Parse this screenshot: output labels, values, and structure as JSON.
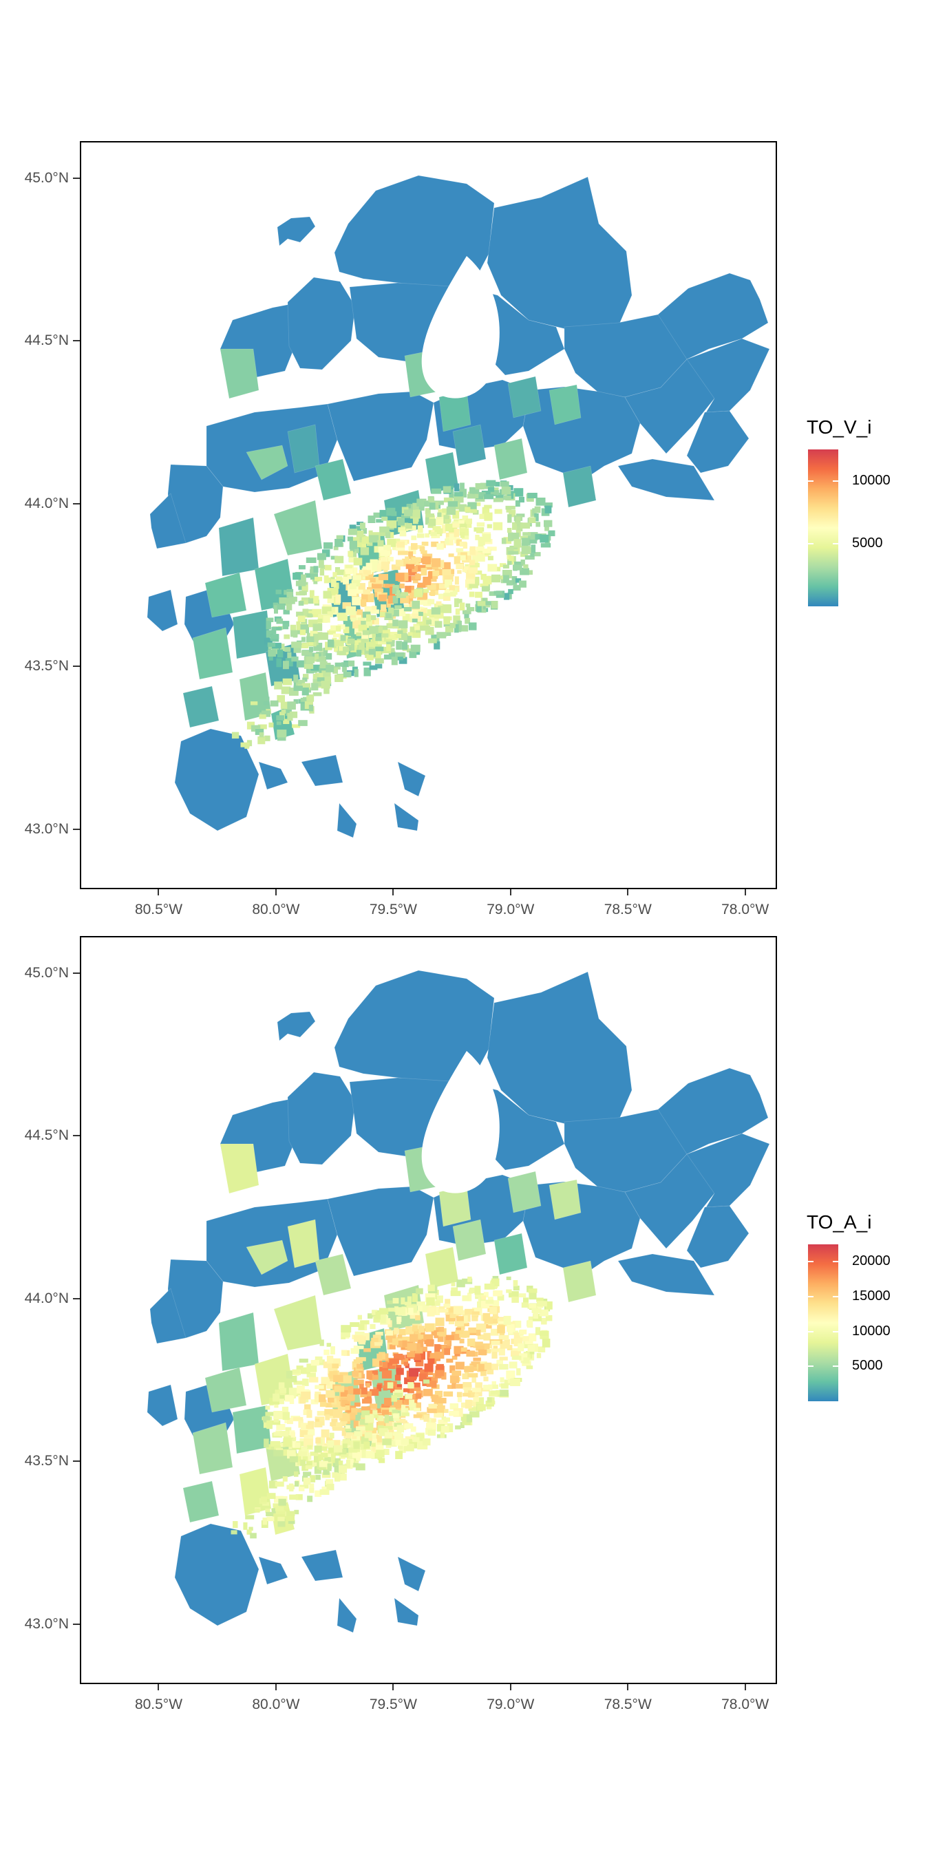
{
  "panels": [
    {
      "id": "top",
      "legend": {
        "title": "TO_V_i",
        "labels": [
          "10000",
          "5000"
        ],
        "label_values": [
          10000,
          5000
        ],
        "range": [
          0,
          12500
        ]
      }
    },
    {
      "id": "bottom",
      "legend": {
        "title": "TO_A_i",
        "labels": [
          "20000",
          "15000",
          "10000",
          "5000"
        ],
        "label_values": [
          20000,
          15000,
          10000,
          5000
        ],
        "range": [
          0,
          22500
        ]
      }
    }
  ],
  "y_axis": {
    "labels": [
      "45.0°N",
      "44.5°N",
      "44.0°N",
      "43.5°N",
      "43.0°N"
    ],
    "values": [
      45.0,
      44.5,
      44.0,
      43.5,
      43.0
    ],
    "range": [
      42.82,
      45.11
    ]
  },
  "x_axis": {
    "labels": [
      "80.5°W",
      "80.0°W",
      "79.5°W",
      "79.0°W",
      "78.5°W",
      "78.0°W"
    ],
    "values": [
      -80.5,
      -80.0,
      -79.5,
      -79.0,
      -78.5,
      -78.0
    ],
    "range": [
      -80.83,
      -77.87
    ]
  },
  "colors": {
    "scale": [
      "#3288bd",
      "#66c2a5",
      "#abdda4",
      "#e6f598",
      "#ffffbf",
      "#fee08b",
      "#fdae61",
      "#f46d43",
      "#d53e4f"
    ],
    "rural_blue": "#3a8bc0",
    "frame": "#000000",
    "axis_text": "#4d4d4d"
  }
}
